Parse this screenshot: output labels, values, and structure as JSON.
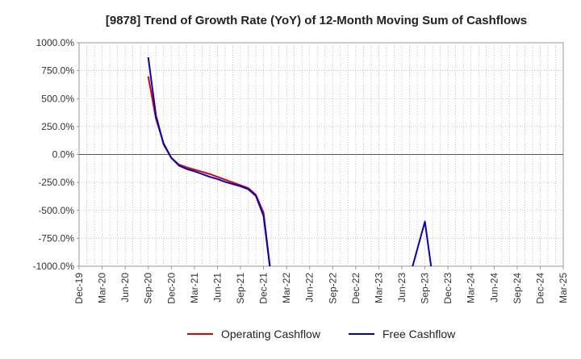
{
  "chart_data": {
    "type": "line",
    "title": "[9878]  Trend of Growth Rate (YoY) of 12-Month Moving Sum of Cashflows",
    "xlabel": "",
    "ylabel": "",
    "ylim": [
      -1000,
      1000
    ],
    "y_ticks": [
      1000,
      750,
      500,
      250,
      0,
      -250,
      -500,
      -750,
      -1000
    ],
    "y_tick_labels": [
      "1000.0%",
      "750.0%",
      "500.0%",
      "250.0%",
      "0.0%",
      "-250.0%",
      "-500.0%",
      "-750.0%",
      "-1000.0%"
    ],
    "x_tick_labels": [
      "Dec-19",
      "Mar-20",
      "Jun-20",
      "Sep-20",
      "Dec-20",
      "Mar-21",
      "Jun-21",
      "Sep-21",
      "Dec-21",
      "Mar-22",
      "Jun-22",
      "Sep-22",
      "Dec-22",
      "Mar-23",
      "Jun-23",
      "Sep-23",
      "Dec-23",
      "Mar-24",
      "Jun-24",
      "Sep-24",
      "Dec-24",
      "Mar-25"
    ],
    "grid": true,
    "legend_position": "bottom",
    "series": [
      {
        "name": "Operating Cashflow",
        "color": "#e00000",
        "points": [
          [
            "Sep-20",
            700
          ],
          [
            "Oct-20",
            320
          ],
          [
            "Nov-20",
            100
          ],
          [
            "Dec-20",
            -30
          ],
          [
            "Jan-21",
            -90
          ],
          [
            "Feb-21",
            -115
          ],
          [
            "Mar-21",
            -135
          ],
          [
            "Apr-21",
            -155
          ],
          [
            "May-21",
            -175
          ],
          [
            "Jun-21",
            -200
          ],
          [
            "Jul-21",
            -225
          ],
          [
            "Aug-21",
            -250
          ],
          [
            "Sep-21",
            -275
          ],
          [
            "Oct-21",
            -300
          ],
          [
            "Nov-21",
            -360
          ],
          [
            "Dec-21",
            -520
          ],
          [
            "Jan-22",
            -1100
          ]
        ]
      },
      {
        "name": "Free Cashflow",
        "color": "#0000cc",
        "points": [
          [
            "Sep-20",
            870
          ],
          [
            "Oct-20",
            350
          ],
          [
            "Nov-20",
            90
          ],
          [
            "Dec-20",
            -30
          ],
          [
            "Jan-21",
            -100
          ],
          [
            "Feb-21",
            -130
          ],
          [
            "Mar-21",
            -150
          ],
          [
            "Apr-21",
            -175
          ],
          [
            "May-21",
            -200
          ],
          [
            "Jun-21",
            -220
          ],
          [
            "Jul-21",
            -245
          ],
          [
            "Aug-21",
            -265
          ],
          [
            "Sep-21",
            -285
          ],
          [
            "Oct-21",
            -310
          ],
          [
            "Nov-21",
            -370
          ],
          [
            "Dec-21",
            -550
          ],
          [
            "Jan-22",
            -1100
          ],
          null,
          [
            "Jul-23",
            -1100
          ],
          [
            "Aug-23",
            -850
          ],
          [
            "Sep-23",
            -600
          ],
          [
            "Oct-23",
            -1100
          ]
        ]
      }
    ]
  }
}
